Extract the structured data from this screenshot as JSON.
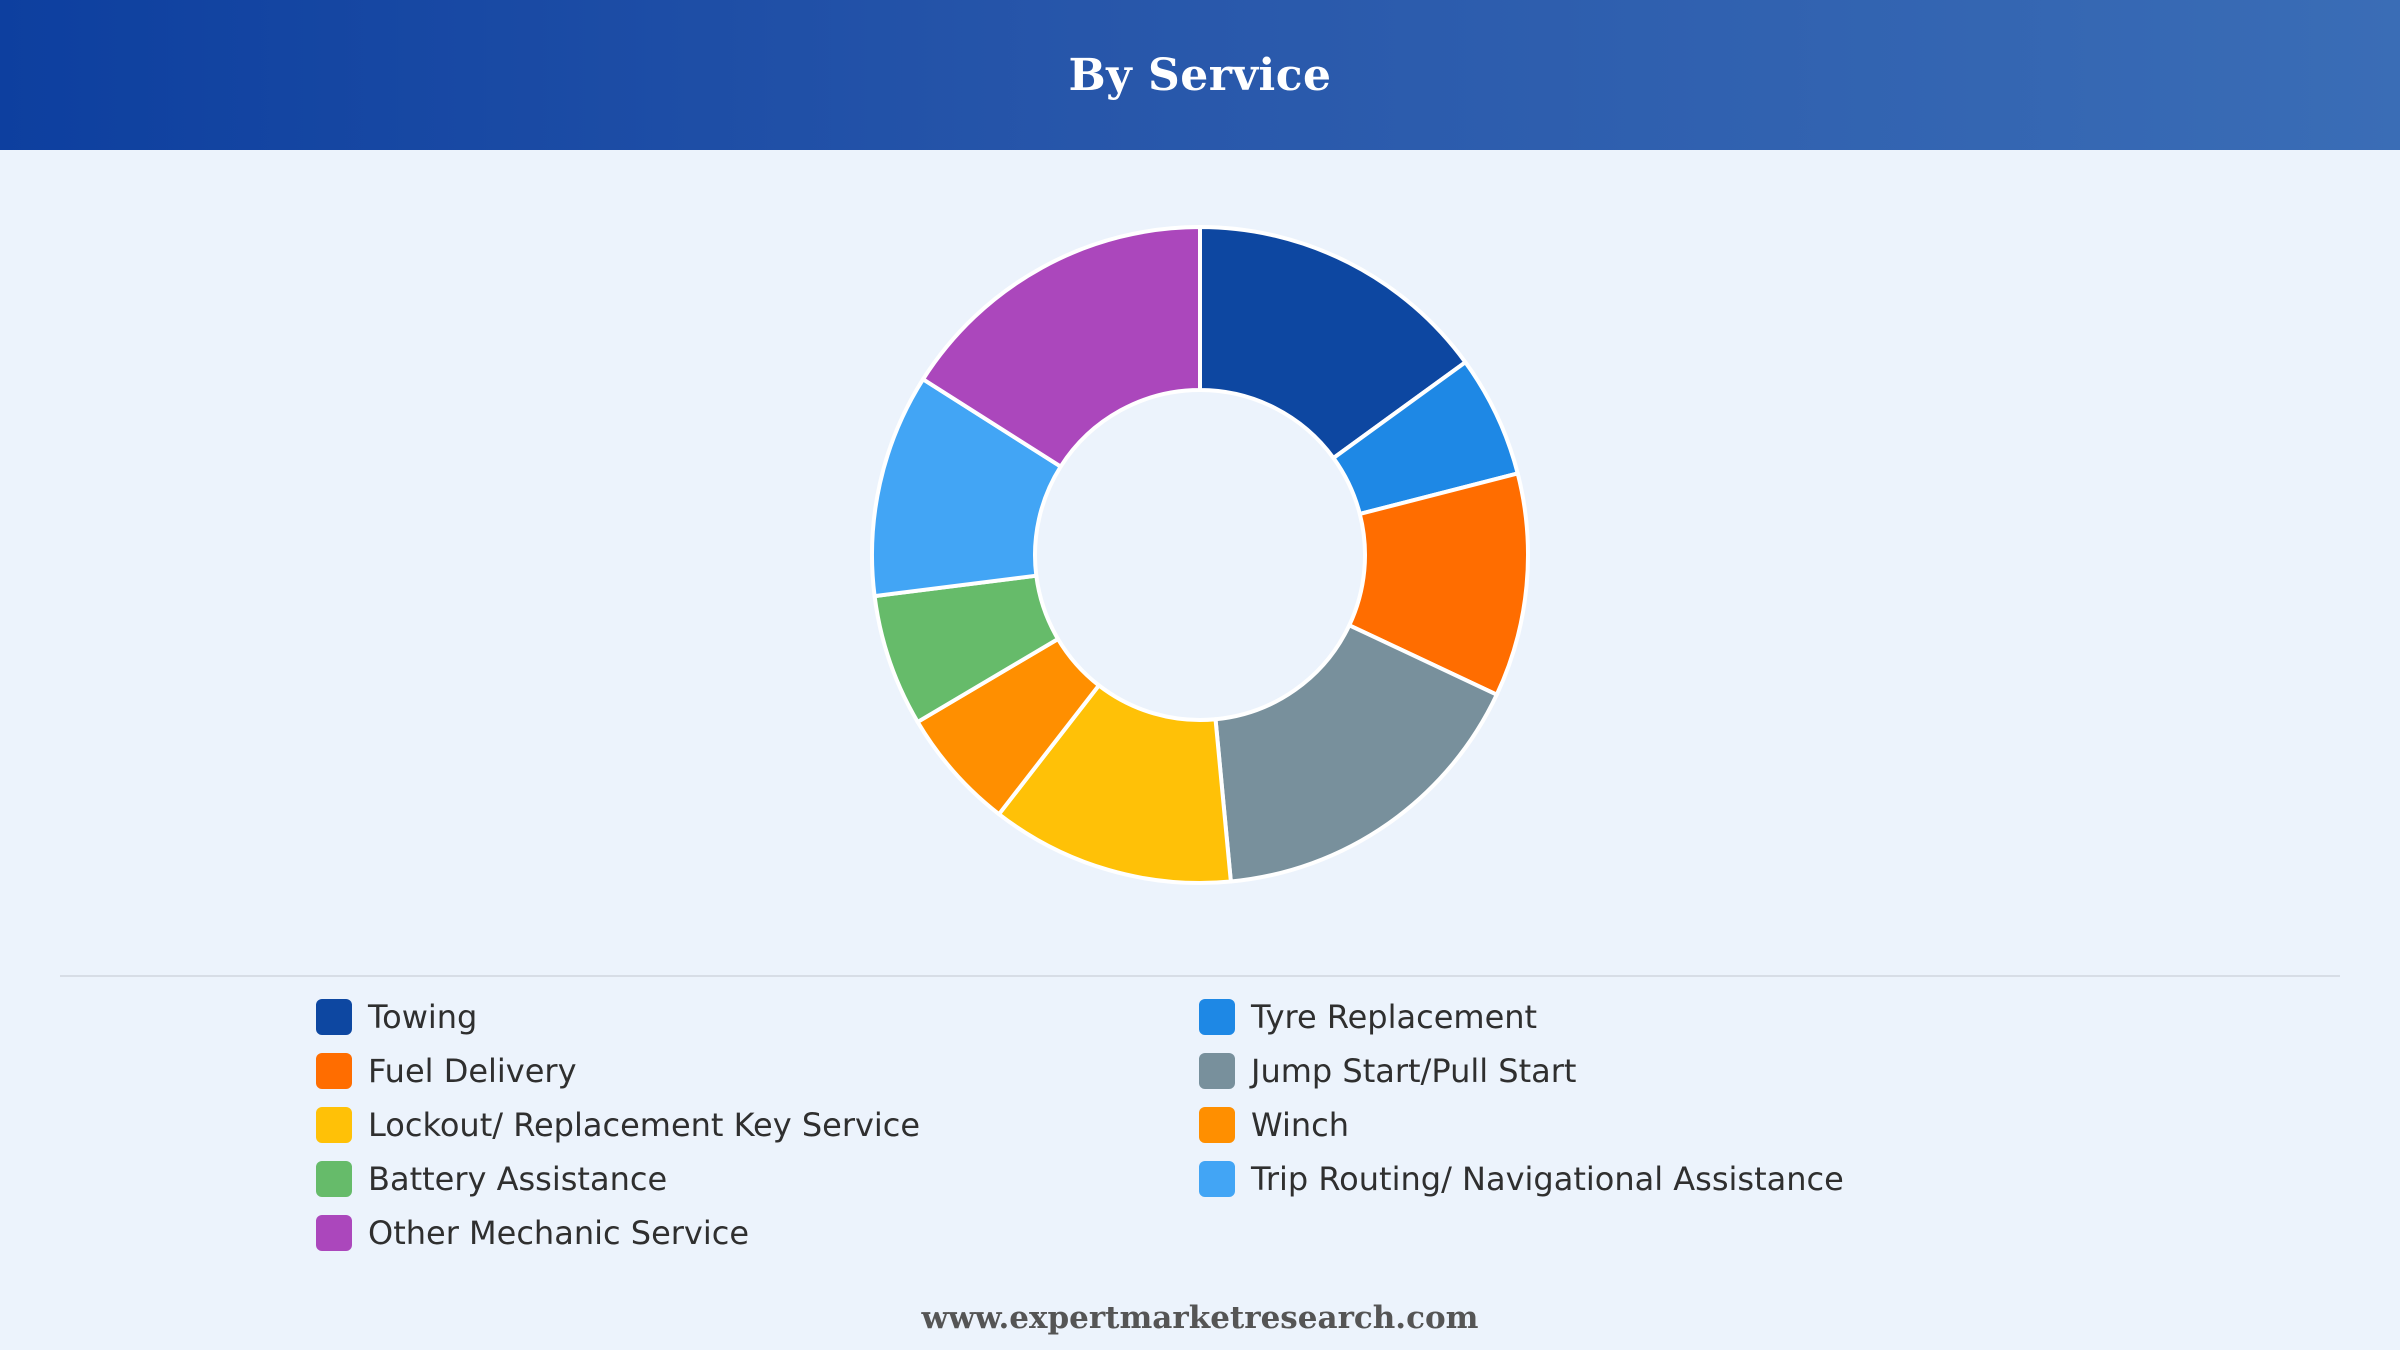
{
  "header": {
    "title": "By Service"
  },
  "footer": {
    "text": "www.expertmarketresearch.com"
  },
  "chart_data": {
    "type": "pie",
    "subtype": "donut",
    "title": "By Service",
    "legend_position": "bottom",
    "categories": [
      "Towing",
      "Tyre Replacement",
      "Fuel Delivery",
      "Jump Start/Pull Start",
      "Lockout/ Replacement Key Service",
      "Winch",
      "Battery Assistance",
      "Trip Routing/ Navigational Assistance",
      "Other Mechanic Service"
    ],
    "values": [
      15,
      6,
      11,
      16.5,
      12,
      6,
      6.5,
      11,
      16
    ],
    "colors": [
      "#0d47a1",
      "#1e88e5",
      "#ff6d00",
      "#78909c",
      "#ffc107",
      "#ff8f00",
      "#66bb6a",
      "#42a5f5",
      "#ab47bc"
    ]
  }
}
